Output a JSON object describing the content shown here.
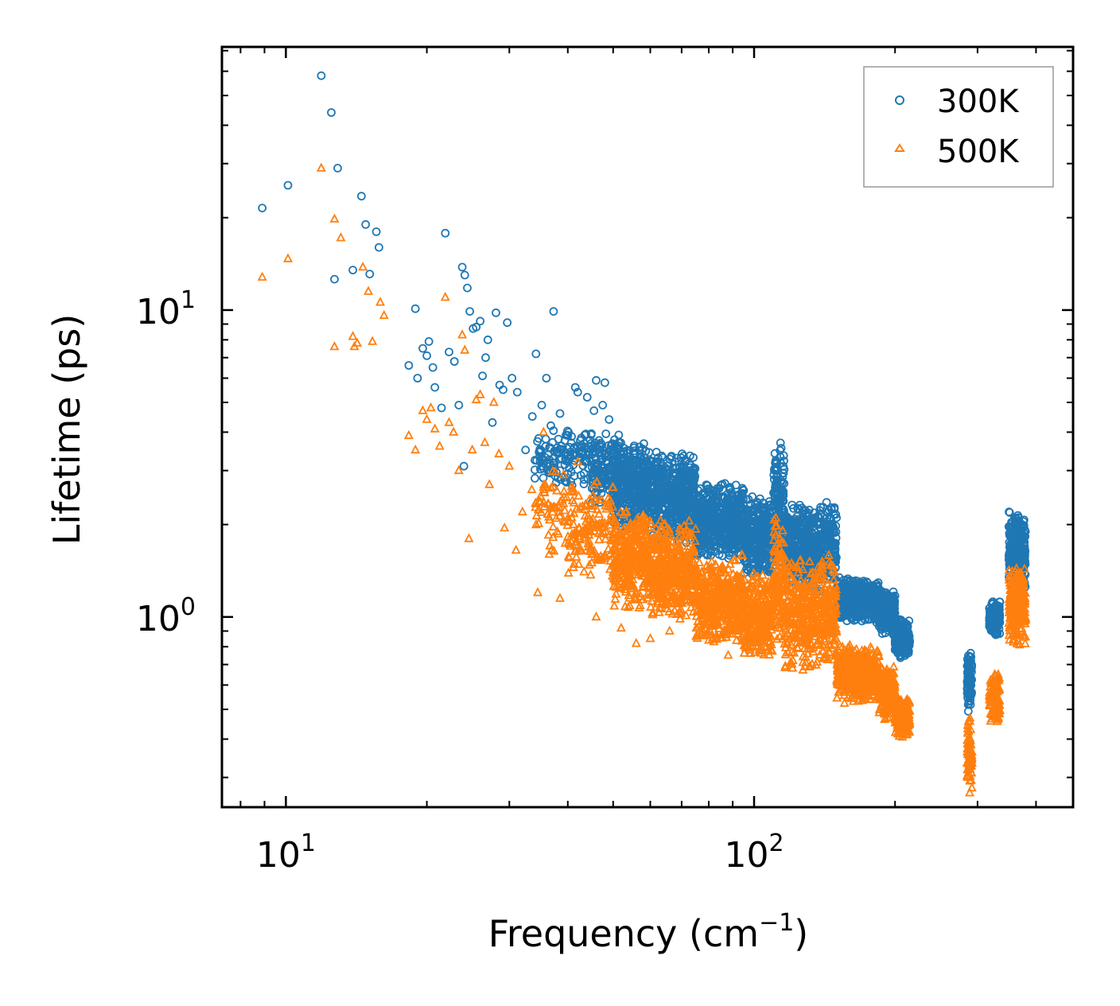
{
  "chart_data": {
    "type": "scatter",
    "xscale": "log",
    "yscale": "log",
    "xlim": [
      7.3,
      480
    ],
    "ylim": [
      0.24,
      72
    ],
    "xlabel": {
      "main": "Frequency (cm",
      "sup": "−1",
      "close": ")"
    },
    "ylabel": "Lifetime (ps)",
    "xticks": [
      {
        "value": 10,
        "base": "10",
        "exp": "1"
      },
      {
        "value": 100,
        "base": "10",
        "exp": "2"
      }
    ],
    "yticks": [
      {
        "value": 1,
        "base": "10",
        "exp": "0"
      },
      {
        "value": 10,
        "base": "10",
        "exp": "1"
      }
    ],
    "legend": {
      "position": "upper-right",
      "entries": [
        "300K",
        "500K"
      ]
    },
    "series": [
      {
        "name": "300K",
        "marker": "circle",
        "color": "#1f77b4",
        "points": [
          [
            8.9,
            21.5
          ],
          [
            10.1,
            25.5
          ],
          [
            11.9,
            58
          ],
          [
            12.5,
            44
          ],
          [
            12.7,
            12.6
          ],
          [
            12.9,
            29
          ],
          [
            13.9,
            13.5
          ],
          [
            14.5,
            23.5
          ],
          [
            14.8,
            19
          ],
          [
            15.1,
            13.1
          ],
          [
            15.6,
            18.0
          ],
          [
            15.8,
            16.0
          ],
          [
            18.3,
            6.6
          ],
          [
            18.9,
            10.1
          ],
          [
            19.1,
            6.0
          ],
          [
            19.6,
            7.5
          ],
          [
            20.0,
            7.1
          ],
          [
            20.2,
            7.9
          ],
          [
            20.6,
            6.5
          ],
          [
            20.8,
            5.6
          ],
          [
            21.5,
            4.8
          ],
          [
            21.9,
            17.8
          ],
          [
            22.3,
            7.3
          ],
          [
            22.9,
            6.8
          ],
          [
            23.4,
            4.9
          ],
          [
            23.8,
            13.8
          ],
          [
            24.1,
            13.0
          ],
          [
            24.4,
            11.8
          ],
          [
            24.7,
            9.9
          ],
          [
            25.1,
            8.7
          ],
          [
            25.5,
            8.8
          ],
          [
            26.0,
            9.2
          ],
          [
            26.3,
            6.1
          ],
          [
            26.7,
            7.0
          ],
          [
            27.0,
            8.0
          ],
          [
            27.6,
            4.3
          ],
          [
            28.1,
            9.8
          ],
          [
            28.6,
            5.7
          ],
          [
            29.1,
            5.5
          ],
          [
            29.7,
            9.1
          ],
          [
            30.4,
            6.0
          ],
          [
            31.2,
            5.4
          ],
          [
            32.5,
            3.5
          ],
          [
            33.6,
            4.5
          ],
          [
            34.2,
            7.2
          ],
          [
            35.2,
            4.9
          ],
          [
            36.0,
            6.0
          ],
          [
            36.8,
            4.2
          ],
          [
            37.3,
            9.9
          ],
          [
            38.5,
            4.6
          ],
          [
            40.0,
            3.9
          ],
          [
            41.5,
            5.6
          ],
          [
            42.0,
            5.4
          ],
          [
            44.0,
            5.2
          ],
          [
            45.5,
            4.7
          ],
          [
            46.0,
            5.9
          ],
          [
            47.5,
            4.9
          ],
          [
            48.0,
            5.8
          ],
          [
            49.0,
            4.4
          ],
          [
            24.0,
            3.1
          ]
        ],
        "bands": [
          {
            "x": [
              34,
              38
            ],
            "y": [
              2.4,
              4.3
            ],
            "n": 50
          },
          {
            "x": [
              38,
              45
            ],
            "y": [
              2.6,
              4.4
            ],
            "n": 90
          },
          {
            "x": [
              45,
              52
            ],
            "y": [
              2.3,
              4.0
            ],
            "n": 160
          },
          {
            "x": [
              50,
              60
            ],
            "y": [
              1.9,
              3.8
            ],
            "n": 380
          },
          {
            "x": [
              60,
              75
            ],
            "y": [
              1.7,
              3.5
            ],
            "n": 480
          },
          {
            "x": [
              75,
              95
            ],
            "y": [
              1.5,
              2.8
            ],
            "n": 500
          },
          {
            "x": [
              95,
              110
            ],
            "y": [
              1.3,
              2.5
            ],
            "n": 320
          },
          {
            "x": [
              110,
              116
            ],
            "y": [
              1.5,
              3.8
            ],
            "n": 140
          },
          {
            "x": [
              116,
              150
            ],
            "y": [
              1.2,
              2.4
            ],
            "n": 520
          },
          {
            "x": [
              150,
              185
            ],
            "y": [
              0.95,
              1.35
            ],
            "n": 440
          },
          {
            "x": [
              185,
              200
            ],
            "y": [
              0.85,
              1.25
            ],
            "n": 220
          },
          {
            "x": [
              200,
              215
            ],
            "y": [
              0.72,
              1.0
            ],
            "n": 200
          },
          {
            "x": [
              285,
              292
            ],
            "y": [
              0.48,
              0.82
            ],
            "n": 70
          },
          {
            "x": [
              318,
              335
            ],
            "y": [
              0.85,
              1.15
            ],
            "n": 130
          },
          {
            "x": [
              350,
              380
            ],
            "y": [
              1.2,
              2.3
            ],
            "n": 280
          }
        ]
      },
      {
        "name": "500K",
        "marker": "triangle",
        "color": "#ff7f0e",
        "points": [
          [
            8.9,
            12.8
          ],
          [
            10.1,
            14.7
          ],
          [
            11.9,
            29
          ],
          [
            12.7,
            19.8
          ],
          [
            12.7,
            7.6
          ],
          [
            13.1,
            17.2
          ],
          [
            13.9,
            8.2
          ],
          [
            14.0,
            7.6
          ],
          [
            14.2,
            7.8
          ],
          [
            14.6,
            13.8
          ],
          [
            15.0,
            11.5
          ],
          [
            15.3,
            7.9
          ],
          [
            15.9,
            10.6
          ],
          [
            16.2,
            9.6
          ],
          [
            18.3,
            3.9
          ],
          [
            18.9,
            3.5
          ],
          [
            19.6,
            4.7
          ],
          [
            20.0,
            4.4
          ],
          [
            20.4,
            4.8
          ],
          [
            20.8,
            4.1
          ],
          [
            21.3,
            3.6
          ],
          [
            21.9,
            11.0
          ],
          [
            22.3,
            4.3
          ],
          [
            22.8,
            4.0
          ],
          [
            23.4,
            3.0
          ],
          [
            23.8,
            8.3
          ],
          [
            24.1,
            7.4
          ],
          [
            24.6,
            1.8
          ],
          [
            25.0,
            3.5
          ],
          [
            25.5,
            5.1
          ],
          [
            26.0,
            5.3
          ],
          [
            26.6,
            3.7
          ],
          [
            27.2,
            2.7
          ],
          [
            27.8,
            5.0
          ],
          [
            28.5,
            3.4
          ],
          [
            29.3,
            1.95
          ],
          [
            30.0,
            3.1
          ],
          [
            31.0,
            1.65
          ],
          [
            32.0,
            2.2
          ],
          [
            33.5,
            2.6
          ],
          [
            34.5,
            1.2
          ],
          [
            35.5,
            4.0
          ],
          [
            36.5,
            1.6
          ],
          [
            38.5,
            1.15
          ],
          [
            40.5,
            1.7
          ],
          [
            45.0,
            1.5
          ],
          [
            42.0,
            3.2
          ],
          [
            46.0,
            1.0
          ],
          [
            52.0,
            0.92
          ],
          [
            56.0,
            0.82
          ],
          [
            60.0,
            0.85
          ],
          [
            66.0,
            0.9
          ],
          [
            80.0,
            0.84
          ],
          [
            88.0,
            0.75
          ]
        ],
        "bands": [
          {
            "x": [
              34,
              40
            ],
            "y": [
              1.6,
              3.2
            ],
            "n": 60
          },
          {
            "x": [
              40,
              50
            ],
            "y": [
              1.3,
              2.8
            ],
            "n": 150
          },
          {
            "x": [
              50,
              60
            ],
            "y": [
              1.05,
              2.3
            ],
            "n": 330
          },
          {
            "x": [
              60,
              75
            ],
            "y": [
              0.95,
              2.1
            ],
            "n": 430
          },
          {
            "x": [
              75,
              95
            ],
            "y": [
              0.8,
              1.6
            ],
            "n": 460
          },
          {
            "x": [
              95,
              110
            ],
            "y": [
              0.72,
              1.4
            ],
            "n": 300
          },
          {
            "x": [
              110,
              116
            ],
            "y": [
              0.8,
              2.2
            ],
            "n": 120
          },
          {
            "x": [
              116,
              150
            ],
            "y": [
              0.65,
              1.6
            ],
            "n": 480
          },
          {
            "x": [
              150,
              185
            ],
            "y": [
              0.52,
              0.82
            ],
            "n": 400
          },
          {
            "x": [
              185,
              200
            ],
            "y": [
              0.46,
              0.72
            ],
            "n": 200
          },
          {
            "x": [
              200,
              215
            ],
            "y": [
              0.4,
              0.55
            ],
            "n": 190
          },
          {
            "x": [
              285,
              292
            ],
            "y": [
              0.26,
              0.48
            ],
            "n": 70
          },
          {
            "x": [
              318,
              335
            ],
            "y": [
              0.45,
              0.68
            ],
            "n": 120
          },
          {
            "x": [
              350,
              380
            ],
            "y": [
              0.8,
              1.5
            ],
            "n": 260
          }
        ]
      }
    ]
  }
}
